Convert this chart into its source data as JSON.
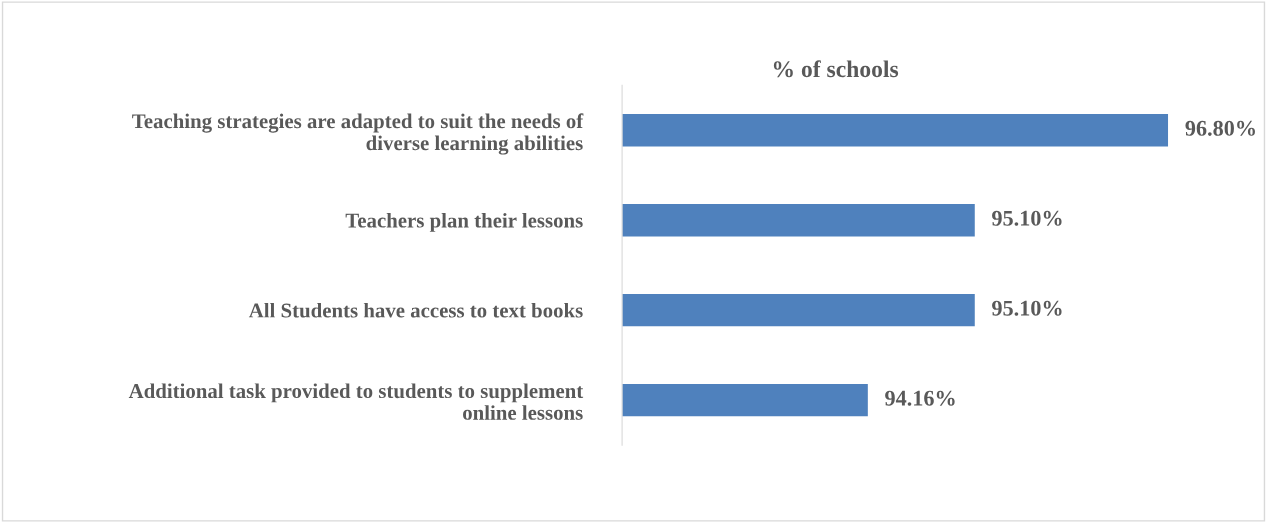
{
  "chart_data": {
    "type": "bar",
    "orientation": "horizontal",
    "title": "% of schools",
    "categories": [
      "Teaching strategies are adapted to suit the needs of\ndiverse learning abilities",
      "Teachers plan their lessons",
      "All Students have access to text books",
      "Additional task provided to students to supplement\nonline lessons"
    ],
    "values": [
      96.8,
      95.1,
      95.1,
      94.16
    ],
    "value_labels": [
      "96.80%",
      "95.10%",
      "95.10%",
      "94.16%"
    ],
    "color": "#4f81bd",
    "xlim": [
      92,
      96.8
    ],
    "tick_labels": "y",
    "grid": false,
    "legend": false
  }
}
